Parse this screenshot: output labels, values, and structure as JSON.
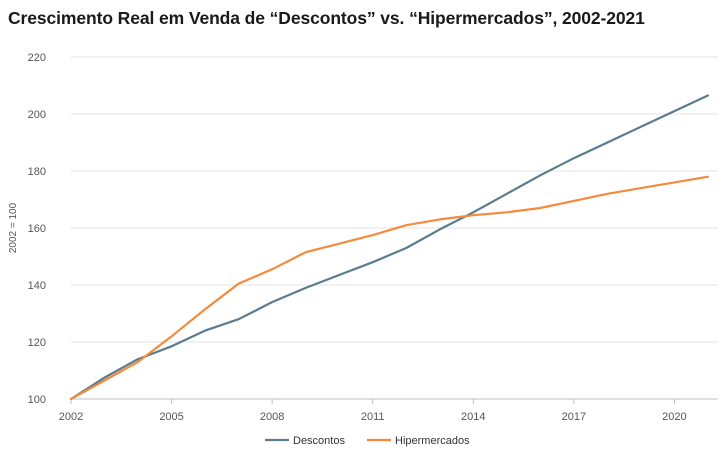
{
  "chart_data": {
    "type": "line",
    "title": "Crescimento Real em Venda de “Descontos” vs. “Hipermercados”, 2002-2021",
    "xlabel": "",
    "ylabel": "2002 = 100",
    "x": [
      2002,
      2003,
      2004,
      2005,
      2006,
      2007,
      2008,
      2009,
      2010,
      2011,
      2012,
      2013,
      2014,
      2015,
      2016,
      2017,
      2018,
      2019,
      2020,
      2021
    ],
    "xticks": [
      2002,
      2005,
      2008,
      2011,
      2014,
      2017,
      2020
    ],
    "xlim": [
      2002,
      2021.3
    ],
    "ylim": [
      100,
      220
    ],
    "yticks": [
      100,
      120,
      140,
      160,
      180,
      200,
      220
    ],
    "grid": true,
    "legend": "bottom",
    "series": [
      {
        "name": "Descontos",
        "color": "#5b7b8f",
        "values": [
          100,
          107.5,
          114,
          118.5,
          124,
          128,
          134,
          139,
          143.5,
          148,
          153,
          159.5,
          165.5,
          172,
          178.5,
          184.5,
          190,
          195.5,
          201,
          206.5
        ]
      },
      {
        "name": "Hipermercados",
        "color": "#f58a3c",
        "values": [
          100,
          106.5,
          113,
          122,
          131.5,
          140.5,
          145.5,
          151.5,
          154.5,
          157.5,
          161,
          163,
          164.5,
          165.5,
          167,
          169.5,
          172,
          174,
          176,
          178
        ]
      }
    ]
  }
}
